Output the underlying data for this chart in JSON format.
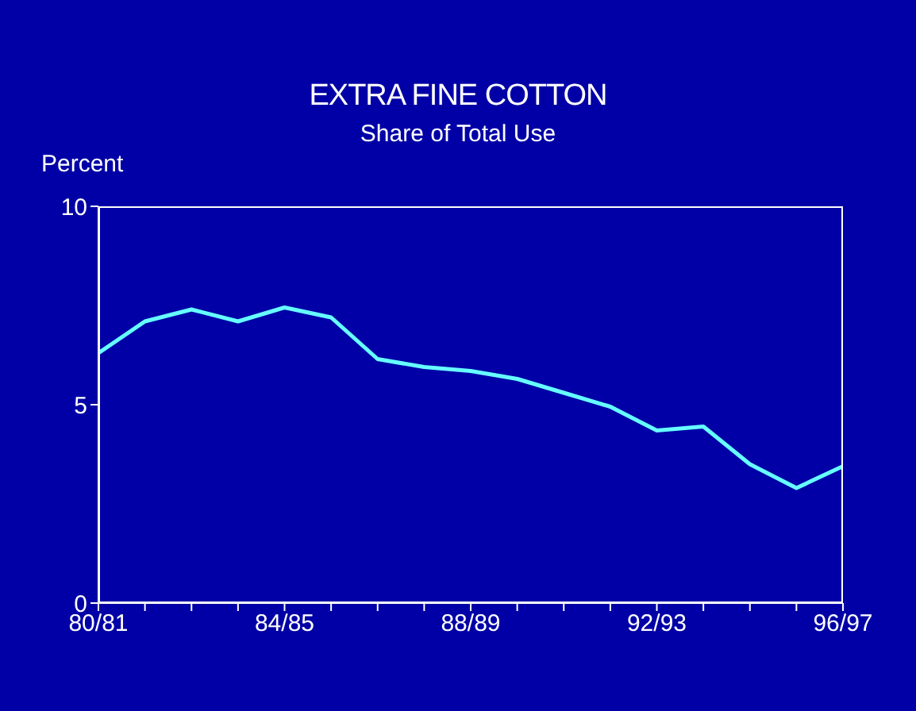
{
  "chart_data": {
    "type": "line",
    "title": "EXTRA FINE COTTON",
    "subtitle": "Share of Total Use",
    "ylabel": "Percent",
    "categories": [
      "80/81",
      null,
      null,
      null,
      "84/85",
      null,
      null,
      null,
      "88/89",
      null,
      null,
      null,
      "92/93",
      null,
      null,
      null,
      "96/97"
    ],
    "series": [
      {
        "color": "#66ffff",
        "values": [
          6.3,
          7.1,
          7.4,
          7.1,
          7.45,
          7.2,
          6.15,
          5.95,
          5.85,
          5.65,
          5.3,
          4.95,
          4.35,
          4.45,
          3.5,
          2.9,
          3.45
        ]
      }
    ],
    "ylim": [
      0,
      10
    ],
    "yticks": [
      0,
      5,
      10
    ],
    "grid": false,
    "legend": false,
    "marker": "none",
    "line_style": "solid"
  }
}
